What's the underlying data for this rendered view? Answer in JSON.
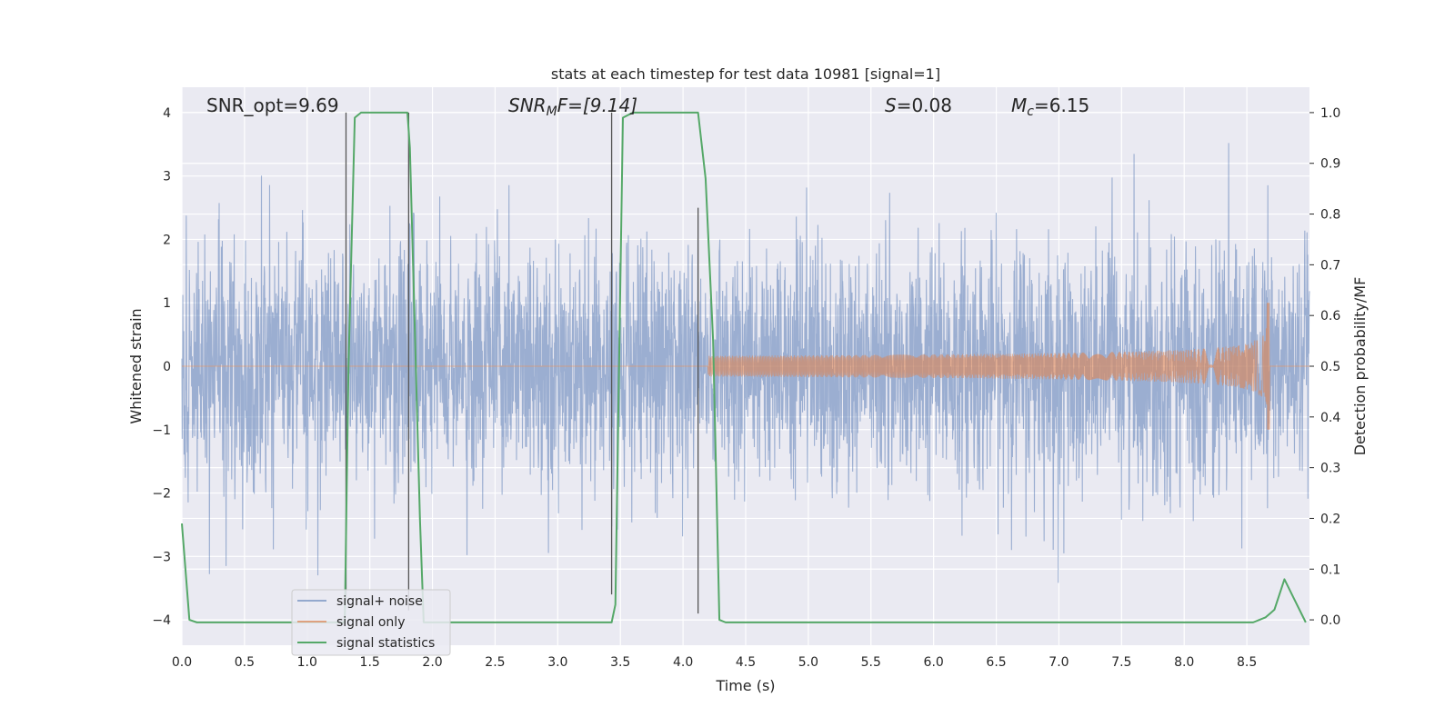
{
  "chart_data": {
    "type": "line",
    "title": "stats at each timestep for test data 10981 [signal=1]",
    "xlabel": "Time (s)",
    "ylabel": "Whitened strain",
    "ylabel_right": "Detection probability/MF",
    "xlim": [
      0.0,
      9.0
    ],
    "ylim": [
      -4.4,
      4.4
    ],
    "ylim_right": [
      -0.05,
      1.05
    ],
    "x_ticks": [
      "0.0",
      "0.5",
      "1.0",
      "1.5",
      "2.0",
      "2.5",
      "3.0",
      "3.5",
      "4.0",
      "4.5",
      "5.0",
      "5.5",
      "6.0",
      "6.5",
      "7.0",
      "7.5",
      "8.0",
      "8.5"
    ],
    "y_ticks": [
      "4",
      "3",
      "2",
      "1",
      "0",
      "−1",
      "−2",
      "−3",
      "−4"
    ],
    "y_right_ticks": [
      "1.0",
      "0.9",
      "0.8",
      "0.7",
      "0.6",
      "0.5",
      "0.4",
      "0.3",
      "0.2",
      "0.1",
      "0.0"
    ],
    "grid": true,
    "annotations": {
      "snr_opt": "SNR_opt=9.69",
      "snr_mf_main": "SNR",
      "snr_mf_sub": "M",
      "snr_mf_rest": "F=[9.14]",
      "s_italic": "S",
      "s_rest": "=0.08",
      "mc_italic": "M",
      "mc_sub": "c",
      "mc_rest": "=6.15"
    },
    "legend": {
      "placement": "lower-left",
      "entries": [
        "signal+ noise",
        "signal only",
        "signal statistics"
      ]
    },
    "series": [
      {
        "name": "signal+ noise",
        "color": "#4c72b0",
        "description_range": [
          -3.5,
          3.7
        ],
        "noise_sigma": 1.0
      },
      {
        "name": "signal only",
        "color": "#dd8452",
        "chirp_start": 4.2,
        "chirp_end": 8.68,
        "peak_amplitude": 1.0
      },
      {
        "name": "signal statistics",
        "color": "#55a868",
        "x": [
          0.0,
          0.06,
          0.12,
          0.3,
          1.2,
          1.3,
          1.33,
          1.38,
          1.43,
          1.8,
          1.82,
          1.9,
          1.93,
          3.43,
          3.46,
          3.52,
          3.6,
          3.7,
          4.12,
          4.18,
          4.24,
          4.29,
          4.34,
          8.4,
          8.55,
          8.65,
          8.72,
          8.8,
          8.88,
          8.97
        ],
        "values": [
          0.19,
          0.0,
          -0.005,
          -0.005,
          -0.005,
          -0.005,
          0.5,
          0.99,
          1.0,
          1.0,
          0.93,
          0.2,
          -0.005,
          -0.005,
          0.03,
          0.99,
          1.0,
          1.0,
          1.0,
          0.87,
          0.55,
          0.0,
          -0.005,
          -0.005,
          -0.005,
          0.005,
          0.02,
          0.08,
          0.04,
          -0.005
        ]
      }
    ],
    "vertical_markers": {
      "color": "#555555",
      "x": [
        1.31,
        1.81,
        3.43,
        4.12
      ],
      "y_top": [
        4.0,
        4.0,
        4.0,
        2.5
      ],
      "y_bottom": [
        -3.7,
        -3.85,
        -3.6,
        -3.9
      ]
    }
  }
}
